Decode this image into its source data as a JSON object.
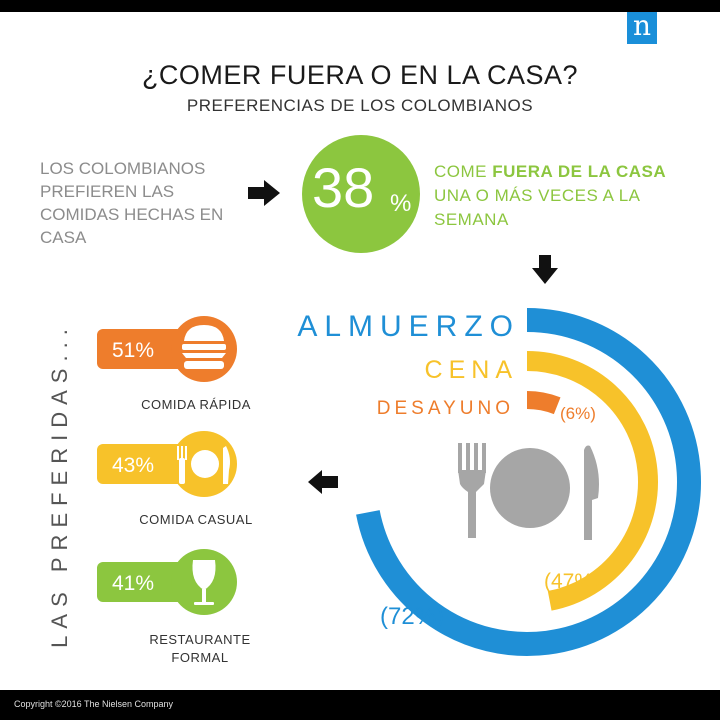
{
  "header": {
    "logo_letter": "n",
    "title": "¿COMER FUERA O EN LA CASA?",
    "subtitle": "PREFERENCIAS DE LOS COLOMBIANOS"
  },
  "intro": {
    "text": "LOS COLOMBIANOS PREFIEREN LAS COMIDAS HECHAS EN CASA"
  },
  "stat": {
    "value": "38",
    "unit": "%",
    "text_prefix": "COME ",
    "text_highlight": "FUERA DE LA CASA",
    "text_suffix": " UNA O MÁS VECES A LA SEMANA"
  },
  "vertical_label": "LAS PREFERIDAS...",
  "colors": {
    "blue": "#1f8fd6",
    "yellow": "#f7c22a",
    "orange": "#ee7d2c",
    "green": "#8cc63f",
    "gray": "#a6a6a6"
  },
  "chart_data": [
    {
      "type": "radial-bar",
      "categories": [
        "ALMUERZO",
        "CENA",
        "DESAYUNO"
      ],
      "values": [
        72,
        47,
        6
      ],
      "value_labels": [
        "(72%)",
        "(47%)",
        "(6%)"
      ],
      "colors": [
        "#1f8fd6",
        "#f7c22a",
        "#ee7d2c"
      ],
      "max": 100
    },
    {
      "type": "bar",
      "categories": [
        "COMIDA RÁPIDA",
        "COMIDA CASUAL",
        "RESTAURANTE FORMAL"
      ],
      "values": [
        51,
        43,
        41
      ],
      "value_labels": [
        "51%",
        "43%",
        "41%"
      ],
      "colors": [
        "#ee7d2c",
        "#f7c22a",
        "#8cc63f"
      ],
      "icons": [
        "burger-icon",
        "fork-plate-knife-icon",
        "wine-glass-icon"
      ]
    }
  ],
  "footer": {
    "copyright": "Copyright ©2016 The Nielsen Company"
  }
}
